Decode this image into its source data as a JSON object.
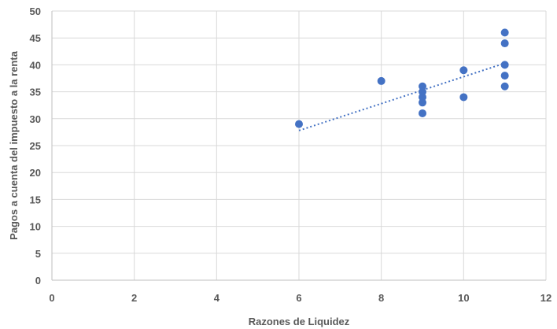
{
  "chart_data": {
    "type": "scatter",
    "xlabel": "Razones de Liquidez",
    "ylabel": "Pagos a cuenta del impuesto a la renta",
    "xlim": [
      0,
      12
    ],
    "ylim": [
      0,
      50
    ],
    "xticks": [
      0,
      2,
      4,
      6,
      8,
      10,
      12
    ],
    "yticks": [
      0,
      5,
      10,
      15,
      20,
      25,
      30,
      35,
      40,
      45,
      50
    ],
    "grid": true,
    "legend": "none",
    "series": [
      {
        "color": "#4472c4",
        "points": [
          {
            "x": 6,
            "y": 29
          },
          {
            "x": 8,
            "y": 37
          },
          {
            "x": 9,
            "y": 36
          },
          {
            "x": 9,
            "y": 35
          },
          {
            "x": 9,
            "y": 34
          },
          {
            "x": 9,
            "y": 33
          },
          {
            "x": 9,
            "y": 31
          },
          {
            "x": 10,
            "y": 39
          },
          {
            "x": 10,
            "y": 34
          },
          {
            "x": 11,
            "y": 46
          },
          {
            "x": 11,
            "y": 44
          },
          {
            "x": 11,
            "y": 40
          },
          {
            "x": 11,
            "y": 38
          },
          {
            "x": 11,
            "y": 36
          }
        ]
      }
    ],
    "trendline": {
      "type": "linear",
      "style": "dotted",
      "color": "#4472c4",
      "from": {
        "x": 6,
        "y": 27.8
      },
      "to": {
        "x": 11,
        "y": 40.3
      }
    }
  }
}
